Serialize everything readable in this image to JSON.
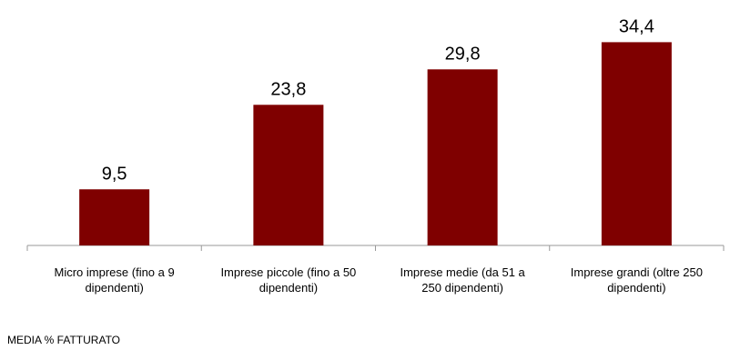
{
  "chart_data": {
    "type": "bar",
    "categories": [
      "Micro imprese (fino a 9 dipendenti)",
      "Imprese piccole (fino a 50 dipendenti)",
      "Imprese medie (da 51 a 250 dipendenti)",
      "Imprese grandi (oltre 250 dipendenti)"
    ],
    "category_lines": [
      [
        "Micro imprese (fino a 9",
        "dipendenti)"
      ],
      [
        "Imprese piccole (fino a 50",
        "dipendenti)"
      ],
      [
        "Imprese medie (da 51 a",
        "250 dipendenti)"
      ],
      [
        "Imprese grandi (oltre 250",
        "dipendenti)"
      ]
    ],
    "values": [
      9.5,
      23.8,
      29.8,
      34.4
    ],
    "value_labels": [
      "9,5",
      "23,8",
      "29,8",
      "34,4"
    ],
    "ylim": [
      0,
      40
    ],
    "grid": false,
    "bar_color": "#7f0000",
    "axis_color": "#999999"
  },
  "footnote": "MEDIA % FATTURATO"
}
